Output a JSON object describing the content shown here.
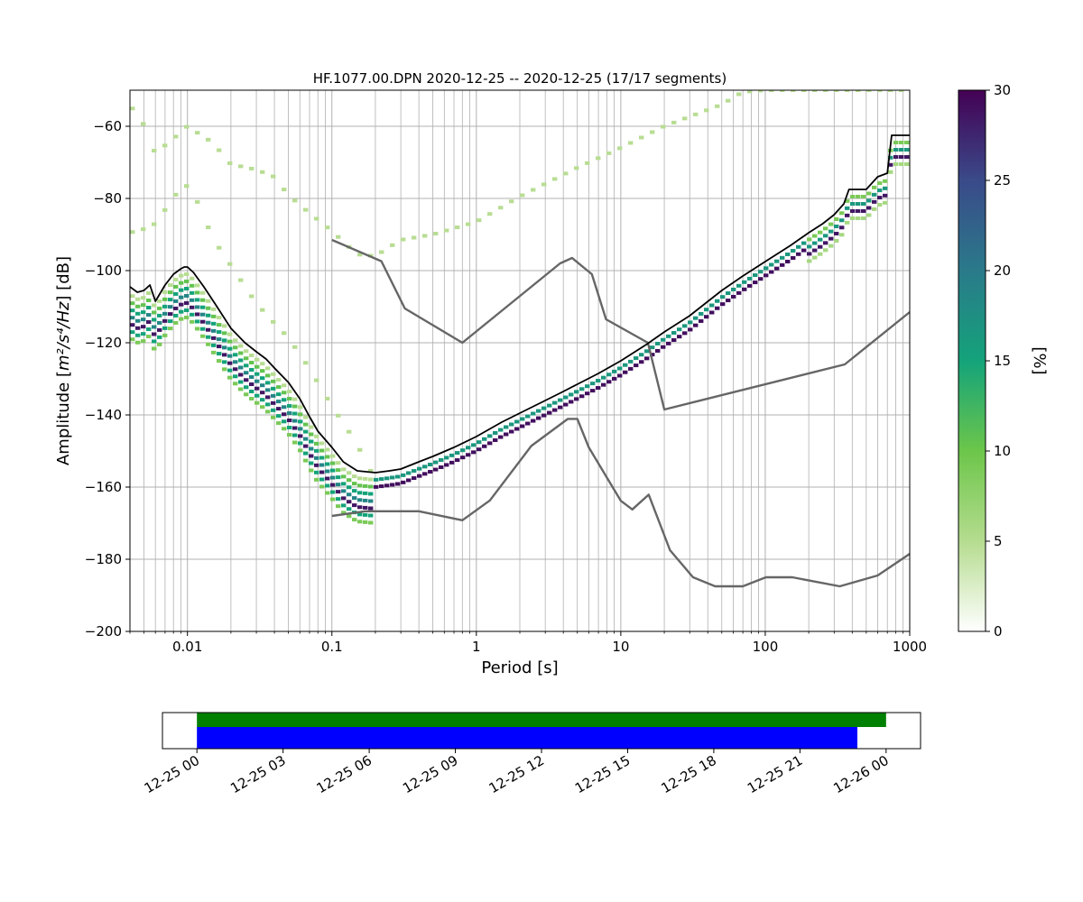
{
  "chart_data": [
    {
      "type": "heatmap",
      "title": "HF.1077.00.DPN   2020-12-25 -- 2020-12-25  (17/17 segments)",
      "xlabel": "Period [s]",
      "ylabel_main": "Amplitude [",
      "ylabel_math": "m²/s⁴/Hz",
      "ylabel_tail": "] [dB]",
      "x_scale": "log",
      "xlim": [
        0.004,
        1000
      ],
      "ylim": [
        -200,
        -50
      ],
      "grid": true,
      "x_ticks": [
        {
          "value": 0.01,
          "label": "0.01"
        },
        {
          "value": 0.1,
          "label": "0.1"
        },
        {
          "value": 1,
          "label": "1"
        },
        {
          "value": 10,
          "label": "10"
        },
        {
          "value": 100,
          "label": "100"
        },
        {
          "value": 1000,
          "label": "1000"
        }
      ],
      "y_ticks": [
        {
          "value": -60,
          "label": "−60"
        },
        {
          "value": -80,
          "label": "−80"
        },
        {
          "value": -100,
          "label": "−100"
        },
        {
          "value": -120,
          "label": "−120"
        },
        {
          "value": -140,
          "label": "−140"
        },
        {
          "value": -160,
          "label": "−160"
        },
        {
          "value": -180,
          "label": "−180"
        },
        {
          "value": -200,
          "label": "−200"
        }
      ],
      "colorbar": {
        "label": "[%]",
        "range": [
          0,
          30
        ],
        "ticks": [
          {
            "value": 0,
            "label": "0"
          },
          {
            "value": 5,
            "label": "5"
          },
          {
            "value": 10,
            "label": "10"
          },
          {
            "value": 15,
            "label": "15"
          },
          {
            "value": 20,
            "label": "20"
          },
          {
            "value": 25,
            "label": "25"
          },
          {
            "value": 30,
            "label": "30"
          }
        ],
        "colors": [
          "#ffffff",
          "#b5dc8f",
          "#6cc64a",
          "#14a37a",
          "#2a7a8a",
          "#3a4a8a",
          "#440154"
        ]
      },
      "series": [
        {
          "role": "noise_model_high",
          "color": "#666666",
          "x": [
            0.1,
            0.22,
            0.32,
            0.8,
            3.8,
            4.6,
            6.3,
            7.9,
            15.4,
            20,
            354.8,
            1000
          ],
          "y": [
            -91.5,
            -97.4,
            -110.5,
            -120,
            -98,
            -96.5,
            -101,
            -113.5,
            -120,
            -138.5,
            -126,
            -111.5
          ]
        },
        {
          "role": "noise_model_low",
          "color": "#666666",
          "x": [
            0.1,
            0.17,
            0.4,
            0.8,
            1.24,
            2.4,
            4.3,
            5.0,
            6.0,
            10.0,
            12.0,
            15.6,
            21.9,
            31.6,
            45,
            70,
            101,
            154,
            328,
            600,
            1000
          ],
          "y": [
            -168,
            -166.7,
            -166.7,
            -169.2,
            -163.7,
            -148.6,
            -141.1,
            -141.1,
            -149,
            -163.8,
            -166.2,
            -162.1,
            -177.5,
            -185,
            -187.5,
            -187.5,
            -185,
            -185,
            -187.5,
            -184.5,
            -178.5
          ]
        },
        {
          "role": "mode",
          "color": "#000000",
          "x": [
            0.004,
            0.0045,
            0.005,
            0.0055,
            0.006,
            0.007,
            0.008,
            0.009,
            0.0095,
            0.01,
            0.011,
            0.013,
            0.016,
            0.02,
            0.025,
            0.03,
            0.035,
            0.04,
            0.05,
            0.06,
            0.07,
            0.08,
            0.1,
            0.12,
            0.15,
            0.2,
            0.25,
            0.3,
            0.4,
            0.5,
            0.7,
            1.0,
            1.5,
            2.0,
            3.0,
            4.0,
            5.0,
            7.0,
            10.0,
            15.0,
            20.0,
            30.0,
            50.0,
            70.0,
            100.0,
            150.0,
            200.0,
            250.0,
            300.0,
            350.0,
            380.0,
            500.0,
            600.0,
            700.0,
            750.0,
            1000.0
          ],
          "y": [
            -104.5,
            -106,
            -105.5,
            -104,
            -108.5,
            -104,
            -101,
            -99.5,
            -99,
            -99,
            -100.5,
            -104.5,
            -110,
            -116,
            -120,
            -122.5,
            -124.5,
            -127,
            -131,
            -135.5,
            -140.5,
            -144.5,
            -149,
            -153,
            -155.5,
            -156,
            -155.5,
            -155,
            -153,
            -151.5,
            -149,
            -146,
            -142,
            -139.5,
            -136,
            -133.5,
            -131.5,
            -128.5,
            -125,
            -120.5,
            -117,
            -112.5,
            -105.5,
            -101.5,
            -97.5,
            -93,
            -89.5,
            -87,
            -84.5,
            -81.5,
            -77.5,
            -77.5,
            -74,
            -73,
            -62.5,
            -62.5
          ]
        },
        {
          "role": "percentile_outline_upper",
          "color": "#b5dc8f",
          "x": [
            0.004,
            0.005,
            0.006,
            0.008,
            0.01,
            0.012,
            0.015,
            0.02,
            0.03,
            0.04,
            0.05,
            0.07,
            0.1,
            0.15,
            0.2,
            0.3,
            0.5,
            1.0,
            2.0,
            5.0,
            10,
            20,
            50,
            70,
            100,
            1000
          ],
          "y": [
            -54,
            -59.5,
            -67.5,
            -63.5,
            -60,
            -62,
            -64.5,
            -70.5,
            -72,
            -74,
            -79,
            -84,
            -89,
            -95.5,
            -96,
            -91.5,
            -90,
            -86.5,
            -79.5,
            -71.5,
            -66,
            -60,
            -54,
            -50.5,
            -50,
            -50
          ]
        },
        {
          "role": "percentile_outline_mid",
          "color": "#b5dc8f",
          "x": [
            0.004,
            0.005,
            0.006,
            0.008,
            0.009,
            0.01,
            0.012,
            0.015,
            0.02,
            0.03,
            0.04,
            0.05,
            0.07,
            0.1,
            0.15,
            0.18,
            0.2
          ],
          "y": [
            -89.5,
            -88.5,
            -87,
            -80,
            -77,
            -76.5,
            -81.5,
            -91,
            -98.5,
            -109,
            -114.5,
            -118.5,
            -127,
            -137.5,
            -148,
            -155,
            -156.5
          ]
        }
      ]
    },
    {
      "type": "timeline",
      "x_ticks": [
        {
          "value": 0,
          "label": "12-25 00"
        },
        {
          "value": 3,
          "label": "12-25 03"
        },
        {
          "value": 6,
          "label": "12-25 06"
        },
        {
          "value": 9,
          "label": "12-25 09"
        },
        {
          "value": 12,
          "label": "12-25 12"
        },
        {
          "value": 15,
          "label": "12-25 15"
        },
        {
          "value": 18,
          "label": "12-25 18"
        },
        {
          "value": 21,
          "label": "12-25 21"
        },
        {
          "value": 24,
          "label": "12-26 00"
        }
      ],
      "xlim_hours": [
        -1.2,
        25.2
      ],
      "bars": [
        {
          "role": "data_available",
          "color": "#008000",
          "start_hour": 0,
          "end_hour": 24
        },
        {
          "role": "psd_segments",
          "color": "#0000ff",
          "start_hour": 0,
          "end_hour": 23
        }
      ]
    }
  ]
}
